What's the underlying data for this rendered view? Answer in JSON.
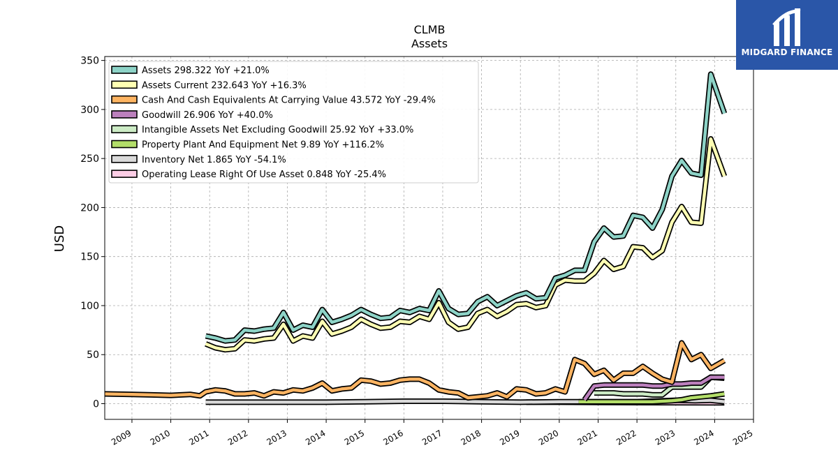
{
  "brand": {
    "name": "MIDGARD FINANCE",
    "bg_color": "#2a56a8"
  },
  "chart_data": {
    "type": "line",
    "title": "CLMB",
    "subtitle": "Assets",
    "xlabel": "",
    "ylabel": "USD",
    "xlim": [
      2008.3,
      2025.0
    ],
    "ylim": [
      -16,
      354
    ],
    "yticks": [
      0,
      50,
      100,
      150,
      200,
      250,
      300,
      350
    ],
    "xticks": [
      2009,
      2010,
      2011,
      2012,
      2013,
      2014,
      2015,
      2016,
      2017,
      2018,
      2019,
      2020,
      2021,
      2022,
      2023,
      2024,
      2025
    ],
    "grid": true,
    "legend_position": "top-left",
    "series": [
      {
        "name": "Assets  298.322 YoY +21.0%",
        "color": "#8dd3c7",
        "points": [
          [
            2010.9,
            69
          ],
          [
            2011.15,
            67
          ],
          [
            2011.4,
            64
          ],
          [
            2011.65,
            65
          ],
          [
            2011.9,
            75
          ],
          [
            2012.15,
            74
          ],
          [
            2012.4,
            76
          ],
          [
            2012.65,
            77
          ],
          [
            2012.9,
            93
          ],
          [
            2013.15,
            75
          ],
          [
            2013.4,
            80
          ],
          [
            2013.65,
            78
          ],
          [
            2013.9,
            96
          ],
          [
            2014.15,
            83
          ],
          [
            2014.4,
            86
          ],
          [
            2014.65,
            90
          ],
          [
            2014.9,
            96
          ],
          [
            2015.15,
            91
          ],
          [
            2015.4,
            87
          ],
          [
            2015.65,
            88
          ],
          [
            2015.9,
            95
          ],
          [
            2016.15,
            93
          ],
          [
            2016.4,
            97
          ],
          [
            2016.65,
            95
          ],
          [
            2016.9,
            115
          ],
          [
            2017.15,
            97
          ],
          [
            2017.4,
            91
          ],
          [
            2017.65,
            92
          ],
          [
            2017.9,
            104
          ],
          [
            2018.15,
            109
          ],
          [
            2018.4,
            100
          ],
          [
            2018.65,
            105
          ],
          [
            2018.9,
            110
          ],
          [
            2019.15,
            113
          ],
          [
            2019.4,
            107
          ],
          [
            2019.65,
            108
          ],
          [
            2019.9,
            128
          ],
          [
            2020.15,
            131
          ],
          [
            2020.4,
            136
          ],
          [
            2020.65,
            136
          ],
          [
            2020.9,
            165
          ],
          [
            2021.15,
            179
          ],
          [
            2021.4,
            170
          ],
          [
            2021.65,
            171
          ],
          [
            2021.9,
            192
          ],
          [
            2022.15,
            190
          ],
          [
            2022.4,
            179
          ],
          [
            2022.65,
            198
          ],
          [
            2022.9,
            232
          ],
          [
            2023.15,
            248
          ],
          [
            2023.4,
            235
          ],
          [
            2023.65,
            233
          ],
          [
            2023.9,
            336
          ],
          [
            2024.25,
            296
          ]
        ]
      },
      {
        "name": "Assets Current  232.643 YoY +16.3%",
        "color": "#ffffb3",
        "points": [
          [
            2010.9,
            61
          ],
          [
            2011.15,
            57
          ],
          [
            2011.4,
            55
          ],
          [
            2011.65,
            56
          ],
          [
            2011.9,
            65
          ],
          [
            2012.15,
            64
          ],
          [
            2012.4,
            66
          ],
          [
            2012.65,
            67
          ],
          [
            2012.9,
            81
          ],
          [
            2013.15,
            64
          ],
          [
            2013.4,
            69
          ],
          [
            2013.65,
            67
          ],
          [
            2013.9,
            84
          ],
          [
            2014.15,
            71
          ],
          [
            2014.4,
            74
          ],
          [
            2014.65,
            78
          ],
          [
            2014.9,
            86
          ],
          [
            2015.15,
            81
          ],
          [
            2015.4,
            77
          ],
          [
            2015.65,
            78
          ],
          [
            2015.9,
            84
          ],
          [
            2016.15,
            83
          ],
          [
            2016.4,
            89
          ],
          [
            2016.65,
            86
          ],
          [
            2016.9,
            103
          ],
          [
            2017.15,
            83
          ],
          [
            2017.4,
            76
          ],
          [
            2017.65,
            78
          ],
          [
            2017.9,
            92
          ],
          [
            2018.15,
            96
          ],
          [
            2018.4,
            89
          ],
          [
            2018.65,
            94
          ],
          [
            2018.9,
            101
          ],
          [
            2019.15,
            102
          ],
          [
            2019.4,
            98
          ],
          [
            2019.65,
            100
          ],
          [
            2019.9,
            121
          ],
          [
            2020.15,
            126
          ],
          [
            2020.4,
            125
          ],
          [
            2020.65,
            125
          ],
          [
            2020.9,
            133
          ],
          [
            2021.15,
            146
          ],
          [
            2021.4,
            137
          ],
          [
            2021.65,
            140
          ],
          [
            2021.9,
            160
          ],
          [
            2022.15,
            159
          ],
          [
            2022.4,
            149
          ],
          [
            2022.65,
            156
          ],
          [
            2022.9,
            185
          ],
          [
            2023.15,
            201
          ],
          [
            2023.4,
            185
          ],
          [
            2023.65,
            184
          ],
          [
            2023.9,
            270
          ],
          [
            2024.25,
            232
          ]
        ]
      },
      {
        "name": "Cash And Cash Equivalents At Carrying Value  43.572 YoY -29.4%",
        "color": "#fdb462",
        "points": [
          [
            2008.3,
            10
          ],
          [
            2009.0,
            9.5
          ],
          [
            2009.5,
            9
          ],
          [
            2010.0,
            8.5
          ],
          [
            2010.5,
            9.5
          ],
          [
            2010.75,
            8
          ],
          [
            2010.9,
            12
          ],
          [
            2011.15,
            14
          ],
          [
            2011.4,
            13
          ],
          [
            2011.65,
            10
          ],
          [
            2011.9,
            10
          ],
          [
            2012.15,
            11
          ],
          [
            2012.4,
            8
          ],
          [
            2012.65,
            12
          ],
          [
            2012.9,
            11
          ],
          [
            2013.15,
            14
          ],
          [
            2013.4,
            13
          ],
          [
            2013.65,
            16
          ],
          [
            2013.9,
            21
          ],
          [
            2014.15,
            13
          ],
          [
            2014.4,
            15
          ],
          [
            2014.65,
            16
          ],
          [
            2014.9,
            24
          ],
          [
            2015.15,
            23
          ],
          [
            2015.4,
            20
          ],
          [
            2015.65,
            21
          ],
          [
            2015.9,
            24
          ],
          [
            2016.15,
            25
          ],
          [
            2016.4,
            25
          ],
          [
            2016.65,
            21
          ],
          [
            2016.9,
            14
          ],
          [
            2017.15,
            12
          ],
          [
            2017.4,
            11
          ],
          [
            2017.65,
            6
          ],
          [
            2017.9,
            7
          ],
          [
            2018.15,
            8
          ],
          [
            2018.4,
            11
          ],
          [
            2018.65,
            7
          ],
          [
            2018.9,
            15
          ],
          [
            2019.15,
            14
          ],
          [
            2019.4,
            10
          ],
          [
            2019.65,
            11
          ],
          [
            2019.9,
            15
          ],
          [
            2020.15,
            12
          ],
          [
            2020.4,
            45
          ],
          [
            2020.65,
            41
          ],
          [
            2020.9,
            30
          ],
          [
            2021.15,
            34
          ],
          [
            2021.4,
            24
          ],
          [
            2021.65,
            31
          ],
          [
            2021.9,
            31
          ],
          [
            2022.15,
            38
          ],
          [
            2022.4,
            31
          ],
          [
            2022.65,
            25
          ],
          [
            2022.9,
            22
          ],
          [
            2023.15,
            62
          ],
          [
            2023.4,
            45
          ],
          [
            2023.65,
            50
          ],
          [
            2023.9,
            36
          ],
          [
            2024.25,
            44
          ]
        ]
      },
      {
        "name": "Goodwill  26.906 YoY +40.0%",
        "color": "#bc80bd",
        "points": [
          [
            2020.65,
            4
          ],
          [
            2020.9,
            18
          ],
          [
            2021.15,
            19
          ],
          [
            2021.4,
            19
          ],
          [
            2021.65,
            19
          ],
          [
            2021.9,
            19
          ],
          [
            2022.15,
            19
          ],
          [
            2022.4,
            18
          ],
          [
            2022.65,
            18
          ],
          [
            2022.9,
            20
          ],
          [
            2023.15,
            20
          ],
          [
            2023.4,
            21
          ],
          [
            2023.65,
            21
          ],
          [
            2023.9,
            27
          ],
          [
            2024.25,
            27
          ]
        ]
      },
      {
        "name": "Intangible Assets Net Excluding Goodwill  25.92 YoY +33.0%",
        "color": "#ccebc5",
        "points": [
          [
            2020.9,
            11
          ],
          [
            2021.15,
            11
          ],
          [
            2021.4,
            11
          ],
          [
            2021.65,
            10
          ],
          [
            2021.9,
            10
          ],
          [
            2022.15,
            10
          ],
          [
            2022.4,
            9
          ],
          [
            2022.65,
            9
          ],
          [
            2022.9,
            17
          ],
          [
            2023.15,
            17
          ],
          [
            2023.4,
            17
          ],
          [
            2023.65,
            17
          ],
          [
            2023.9,
            27
          ],
          [
            2024.25,
            26
          ]
        ]
      },
      {
        "name": "Property Plant And Equipment Net  9.89 YoY +116.2%",
        "color": "#b3de69",
        "points": [
          [
            2020.5,
            2
          ],
          [
            2020.9,
            2
          ],
          [
            2021.4,
            2
          ],
          [
            2021.9,
            2
          ],
          [
            2022.4,
            2
          ],
          [
            2022.9,
            3
          ],
          [
            2023.15,
            4
          ],
          [
            2023.4,
            6
          ],
          [
            2023.65,
            7
          ],
          [
            2023.9,
            8
          ],
          [
            2024.25,
            10
          ]
        ]
      },
      {
        "name": "Inventory Net  1.865 YoY -54.1%",
        "color": "#d9d9d9",
        "points": [
          [
            2010.9,
            1.5
          ],
          [
            2012.0,
            1.5
          ],
          [
            2013.0,
            1.5
          ],
          [
            2014.0,
            1.5
          ],
          [
            2015.0,
            2
          ],
          [
            2016.0,
            2.5
          ],
          [
            2017.0,
            2.5
          ],
          [
            2018.0,
            2
          ],
          [
            2019.0,
            1.5
          ],
          [
            2020.0,
            2
          ],
          [
            2021.0,
            2
          ],
          [
            2022.0,
            2
          ],
          [
            2023.0,
            3.5
          ],
          [
            2023.5,
            3
          ],
          [
            2023.9,
            3.5
          ],
          [
            2024.25,
            2
          ]
        ]
      },
      {
        "name": "Operating Lease Right Of Use Asset  0.848 YoY -25.4%",
        "color": "#fccde5",
        "points": [
          [
            2019.15,
            1.5
          ],
          [
            2020.0,
            1.5
          ],
          [
            2021.0,
            1.2
          ],
          [
            2022.0,
            1.1
          ],
          [
            2023.0,
            1.0
          ],
          [
            2024.25,
            0.85
          ]
        ]
      }
    ]
  }
}
